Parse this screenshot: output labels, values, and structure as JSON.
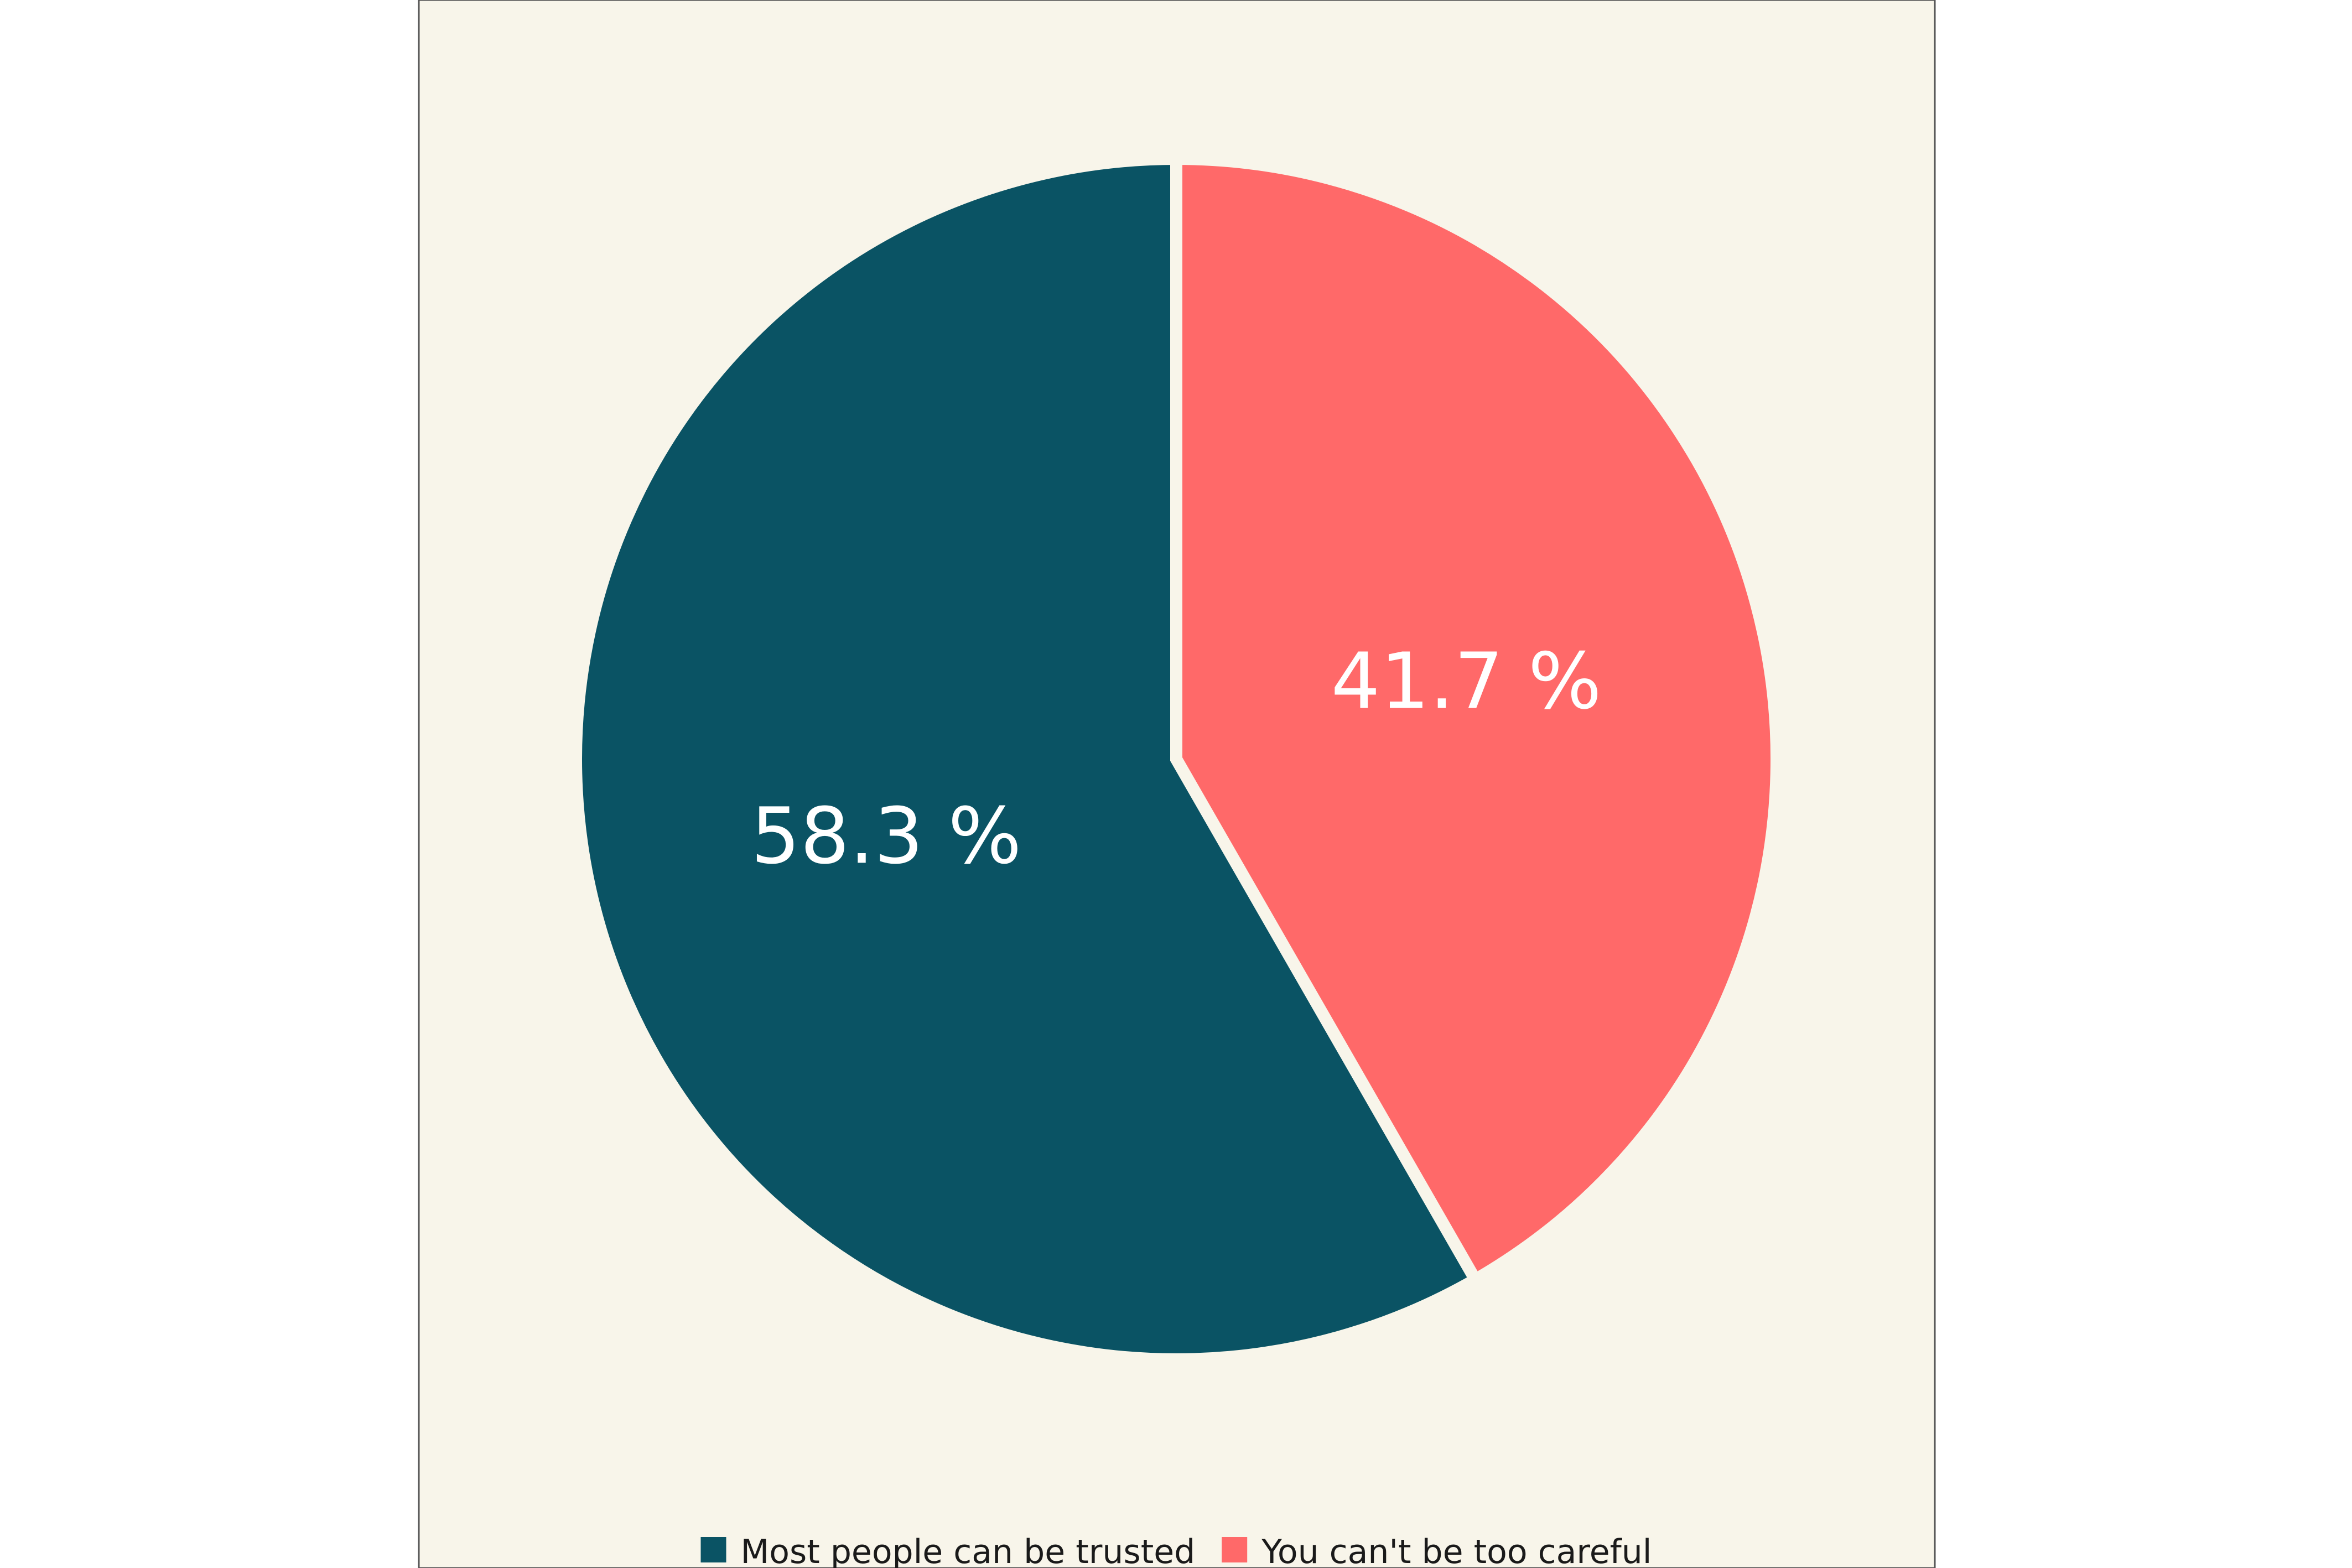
{
  "chart_data": {
    "type": "pie",
    "title": "",
    "background_color": "#F8F5EA",
    "start_angle": "12 o'clock",
    "direction": "counterclockwise",
    "legend_position": "bottom",
    "slices": [
      {
        "label": "Most people can be trusted",
        "value": 58.3,
        "display": "58.3 %",
        "color": "#0A5364"
      },
      {
        "label": "You can't be too careful",
        "value": 41.7,
        "display": "41.7 %",
        "color": "#FF6969"
      }
    ]
  }
}
